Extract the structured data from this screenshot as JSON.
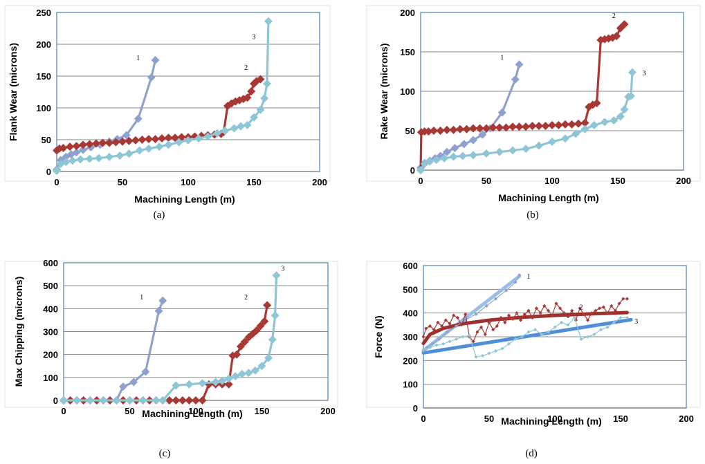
{
  "colors": {
    "series1": "#8fa2cf",
    "series2": "#a83834",
    "series3": "#8ec6d6",
    "trend1": "#9bbde6",
    "trend2": "#9c302c",
    "trend3": "#4f8fd6",
    "frame": "#4a7ebb",
    "grid": "#868686"
  },
  "chart_data": [
    {
      "panel": "(a)",
      "type": "line",
      "title": "",
      "xlabel": "Machining Length (m)",
      "ylabel": "Flank Wear (microns)",
      "xlim": [
        0,
        200
      ],
      "ylim": [
        0,
        250
      ],
      "xticks": [
        0,
        50,
        100,
        150,
        200
      ],
      "yticks": [
        0,
        50,
        100,
        150,
        200,
        250
      ],
      "grid": "horizontal",
      "marker": "diamond",
      "series": [
        {
          "name": "1",
          "x": [
            0,
            3,
            7,
            11,
            15,
            20,
            26,
            33,
            40,
            46,
            53,
            62,
            72,
            75
          ],
          "y": [
            3,
            18,
            23,
            27,
            30,
            34,
            38,
            42,
            47,
            51,
            57,
            83,
            148,
            175
          ]
        },
        {
          "name": "2",
          "x": [
            0,
            2,
            5,
            10,
            15,
            20,
            25,
            30,
            35,
            40,
            45,
            50,
            55,
            60,
            65,
            70,
            75,
            80,
            85,
            90,
            95,
            100,
            105,
            110,
            115,
            120,
            125,
            127,
            130,
            133,
            136,
            139,
            142,
            145,
            148,
            150,
            152,
            155
          ],
          "y": [
            33,
            36,
            37,
            39,
            40,
            42,
            43,
            44,
            45,
            45,
            46,
            47,
            48,
            49,
            50,
            51,
            51,
            52,
            53,
            53,
            54,
            54,
            55,
            56,
            57,
            58,
            59,
            62,
            103,
            107,
            110,
            112,
            114,
            116,
            126,
            138,
            142,
            145
          ]
        },
        {
          "name": "3",
          "x": [
            0,
            3,
            7,
            12,
            18,
            25,
            32,
            40,
            48,
            55,
            63,
            70,
            78,
            85,
            93,
            100,
            108,
            115,
            122,
            128,
            135,
            140,
            145,
            150,
            155,
            158,
            160,
            161
          ],
          "y": [
            1,
            12,
            15,
            17,
            19,
            20,
            21,
            23,
            25,
            28,
            33,
            36,
            39,
            42,
            46,
            49,
            52,
            55,
            60,
            64,
            68,
            71,
            73,
            85,
            97,
            115,
            138,
            236
          ]
        }
      ],
      "labels": [
        {
          "text": "1",
          "x": 62,
          "y": 175
        },
        {
          "text": "2",
          "x": 144,
          "y": 160
        },
        {
          "text": "3",
          "x": 150,
          "y": 208
        }
      ]
    },
    {
      "panel": "(b)",
      "type": "line",
      "title": "",
      "xlabel": "Machining Length (m)",
      "ylabel": "Rake Wear (microns)",
      "xlim": [
        0,
        200
      ],
      "ylim": [
        0,
        200
      ],
      "xticks": [
        0,
        50,
        100,
        150,
        200
      ],
      "yticks": [
        0,
        50,
        100,
        150,
        200
      ],
      "grid": "horizontal",
      "marker": "diamond",
      "series": [
        {
          "name": "1",
          "x": [
            0,
            3,
            7,
            11,
            15,
            20,
            26,
            33,
            40,
            47,
            53,
            62,
            72,
            75
          ],
          "y": [
            3,
            9,
            12,
            15,
            18,
            23,
            28,
            33,
            38,
            45,
            53,
            73,
            115,
            134
          ]
        },
        {
          "name": "2",
          "x": [
            0,
            0.5,
            3,
            6,
            10,
            15,
            20,
            25,
            30,
            35,
            40,
            45,
            50,
            55,
            60,
            65,
            70,
            75,
            80,
            85,
            90,
            95,
            100,
            105,
            110,
            115,
            120,
            125,
            128,
            131,
            134,
            137,
            140,
            143,
            146,
            149,
            152,
            155
          ],
          "y": [
            0,
            48,
            49,
            49,
            50,
            50,
            51,
            51,
            52,
            52,
            53,
            53,
            53,
            54,
            54,
            54,
            55,
            55,
            55,
            56,
            56,
            56,
            57,
            57,
            58,
            58,
            59,
            60,
            80,
            83,
            85,
            165,
            166,
            167,
            168,
            170,
            180,
            185
          ]
        },
        {
          "name": "3",
          "x": [
            0,
            3,
            7,
            12,
            18,
            25,
            32,
            40,
            50,
            60,
            70,
            80,
            90,
            100,
            110,
            118,
            125,
            132,
            140,
            147,
            152,
            155,
            158,
            160,
            161
          ],
          "y": [
            0,
            8,
            11,
            13,
            15,
            17,
            18,
            19,
            21,
            23,
            25,
            27,
            31,
            36,
            40,
            46,
            52,
            57,
            61,
            63,
            68,
            77,
            93,
            94,
            124
          ]
        }
      ],
      "labels": [
        {
          "text": "1",
          "x": 62,
          "y": 140
        },
        {
          "text": "2",
          "x": 147,
          "y": 193
        },
        {
          "text": "3",
          "x": 170,
          "y": 120
        }
      ]
    },
    {
      "panel": "(c)",
      "type": "line",
      "title": "",
      "xlabel": "Machining Length (m)",
      "ylabel": "Max Chipping (microns)",
      "xlim": [
        0,
        200
      ],
      "ylim": [
        0,
        600
      ],
      "xticks": [
        0,
        50,
        100,
        150,
        200
      ],
      "yticks": [
        0,
        100,
        200,
        300,
        400,
        500,
        600
      ],
      "grid": "horizontal",
      "marker": "diamond",
      "series": [
        {
          "name": "1",
          "x": [
            0,
            5,
            10,
            15,
            20,
            25,
            30,
            35,
            40,
            45,
            53,
            62,
            72,
            75
          ],
          "y": [
            0,
            0,
            0,
            0,
            0,
            0,
            0,
            0,
            0,
            60,
            80,
            125,
            390,
            435
          ]
        },
        {
          "name": "2",
          "x": [
            0,
            5,
            10,
            15,
            20,
            25,
            30,
            35,
            40,
            45,
            50,
            55,
            60,
            65,
            70,
            75,
            80,
            85,
            90,
            95,
            100,
            105,
            110,
            115,
            120,
            125,
            128,
            131,
            134,
            137,
            140,
            143,
            146,
            149,
            152,
            154
          ],
          "y": [
            0,
            0,
            0,
            0,
            0,
            0,
            0,
            0,
            0,
            0,
            0,
            0,
            0,
            0,
            0,
            0,
            0,
            0,
            0,
            0,
            0,
            0,
            70,
            70,
            70,
            70,
            195,
            200,
            235,
            255,
            275,
            290,
            305,
            325,
            345,
            415
          ]
        },
        {
          "name": "3",
          "x": [
            0,
            10,
            20,
            30,
            40,
            50,
            60,
            70,
            75,
            85,
            95,
            105,
            115,
            120,
            125,
            130,
            135,
            140,
            145,
            150,
            155,
            158,
            160,
            161
          ],
          "y": [
            0,
            0,
            0,
            0,
            0,
            0,
            0,
            0,
            0,
            65,
            70,
            75,
            80,
            85,
            95,
            105,
            115,
            120,
            130,
            150,
            185,
            265,
            370,
            545
          ]
        }
      ],
      "labels": [
        {
          "text": "1",
          "x": 59,
          "y": 440
        },
        {
          "text": "2",
          "x": 138,
          "y": 440
        },
        {
          "text": "3",
          "x": 166,
          "y": 565
        }
      ]
    },
    {
      "panel": "(d)",
      "type": "scatter",
      "title": "",
      "xlabel": "Machining Length (m)",
      "ylabel": "Force (N)",
      "xlim": [
        0,
        200
      ],
      "ylim": [
        0,
        600
      ],
      "xticks": [
        0,
        50,
        100,
        150,
        200
      ],
      "yticks": [
        0,
        100,
        200,
        300,
        400,
        500,
        600
      ],
      "grid": "horizontal",
      "marker": "small-diamond",
      "series": [
        {
          "name": "1",
          "x": [
            0,
            3,
            7,
            12,
            18,
            25,
            32,
            40,
            48,
            55,
            63,
            70,
            73
          ],
          "y": [
            240,
            255,
            270,
            290,
            320,
            345,
            370,
            395,
            430,
            460,
            495,
            530,
            560
          ]
        },
        {
          "name": "2",
          "x": [
            0,
            2,
            5,
            8,
            11,
            14,
            17,
            20,
            23,
            26,
            29,
            32,
            35,
            38,
            41,
            44,
            47,
            50,
            53,
            56,
            59,
            62,
            65,
            68,
            71,
            74,
            77,
            80,
            83,
            86,
            89,
            92,
            95,
            98,
            101,
            104,
            107,
            110,
            113,
            116,
            119,
            122,
            125,
            128,
            131,
            134,
            137,
            140,
            143,
            146,
            149,
            152,
            155
          ],
          "y": [
            300,
            335,
            345,
            330,
            360,
            345,
            370,
            355,
            390,
            380,
            350,
            395,
            300,
            280,
            320,
            340,
            310,
            360,
            330,
            345,
            380,
            360,
            390,
            375,
            400,
            370,
            395,
            410,
            380,
            420,
            400,
            430,
            410,
            390,
            440,
            420,
            400,
            385,
            410,
            370,
            420,
            395,
            370,
            400,
            410,
            420,
            425,
            400,
            430,
            410,
            440,
            460,
            460
          ]
        },
        {
          "name": "3",
          "x": [
            0,
            5,
            10,
            15,
            20,
            25,
            30,
            35,
            40,
            45,
            50,
            55,
            60,
            65,
            70,
            75,
            80,
            85,
            90,
            95,
            100,
            105,
            110,
            115,
            120,
            125,
            130,
            135,
            140,
            145,
            150,
            155
          ],
          "y": [
            245,
            255,
            265,
            270,
            280,
            290,
            300,
            305,
            215,
            220,
            230,
            240,
            250,
            270,
            290,
            300,
            320,
            330,
            310,
            320,
            340,
            360,
            350,
            380,
            290,
            300,
            310,
            330,
            340,
            360,
            380,
            380
          ]
        }
      ],
      "trendlines": [
        {
          "name": "1",
          "x": [
            0,
            73
          ],
          "y": [
            242,
            555
          ]
        },
        {
          "name": "2",
          "x": [
            0,
            5,
            15,
            30,
            50,
            75,
            100,
            125,
            155
          ],
          "y": [
            272,
            310,
            335,
            355,
            370,
            382,
            390,
            396,
            402
          ]
        },
        {
          "name": "3",
          "x": [
            0,
            158
          ],
          "y": [
            232,
            372
          ]
        }
      ],
      "labels": [
        {
          "text": "1",
          "x": 80,
          "y": 545
        },
        {
          "text": "2",
          "x": 120,
          "y": 415
        },
        {
          "text": "3",
          "x": 162,
          "y": 355
        }
      ]
    }
  ],
  "captions": [
    "(a)",
    "(b)",
    "(c)",
    "(d)"
  ]
}
